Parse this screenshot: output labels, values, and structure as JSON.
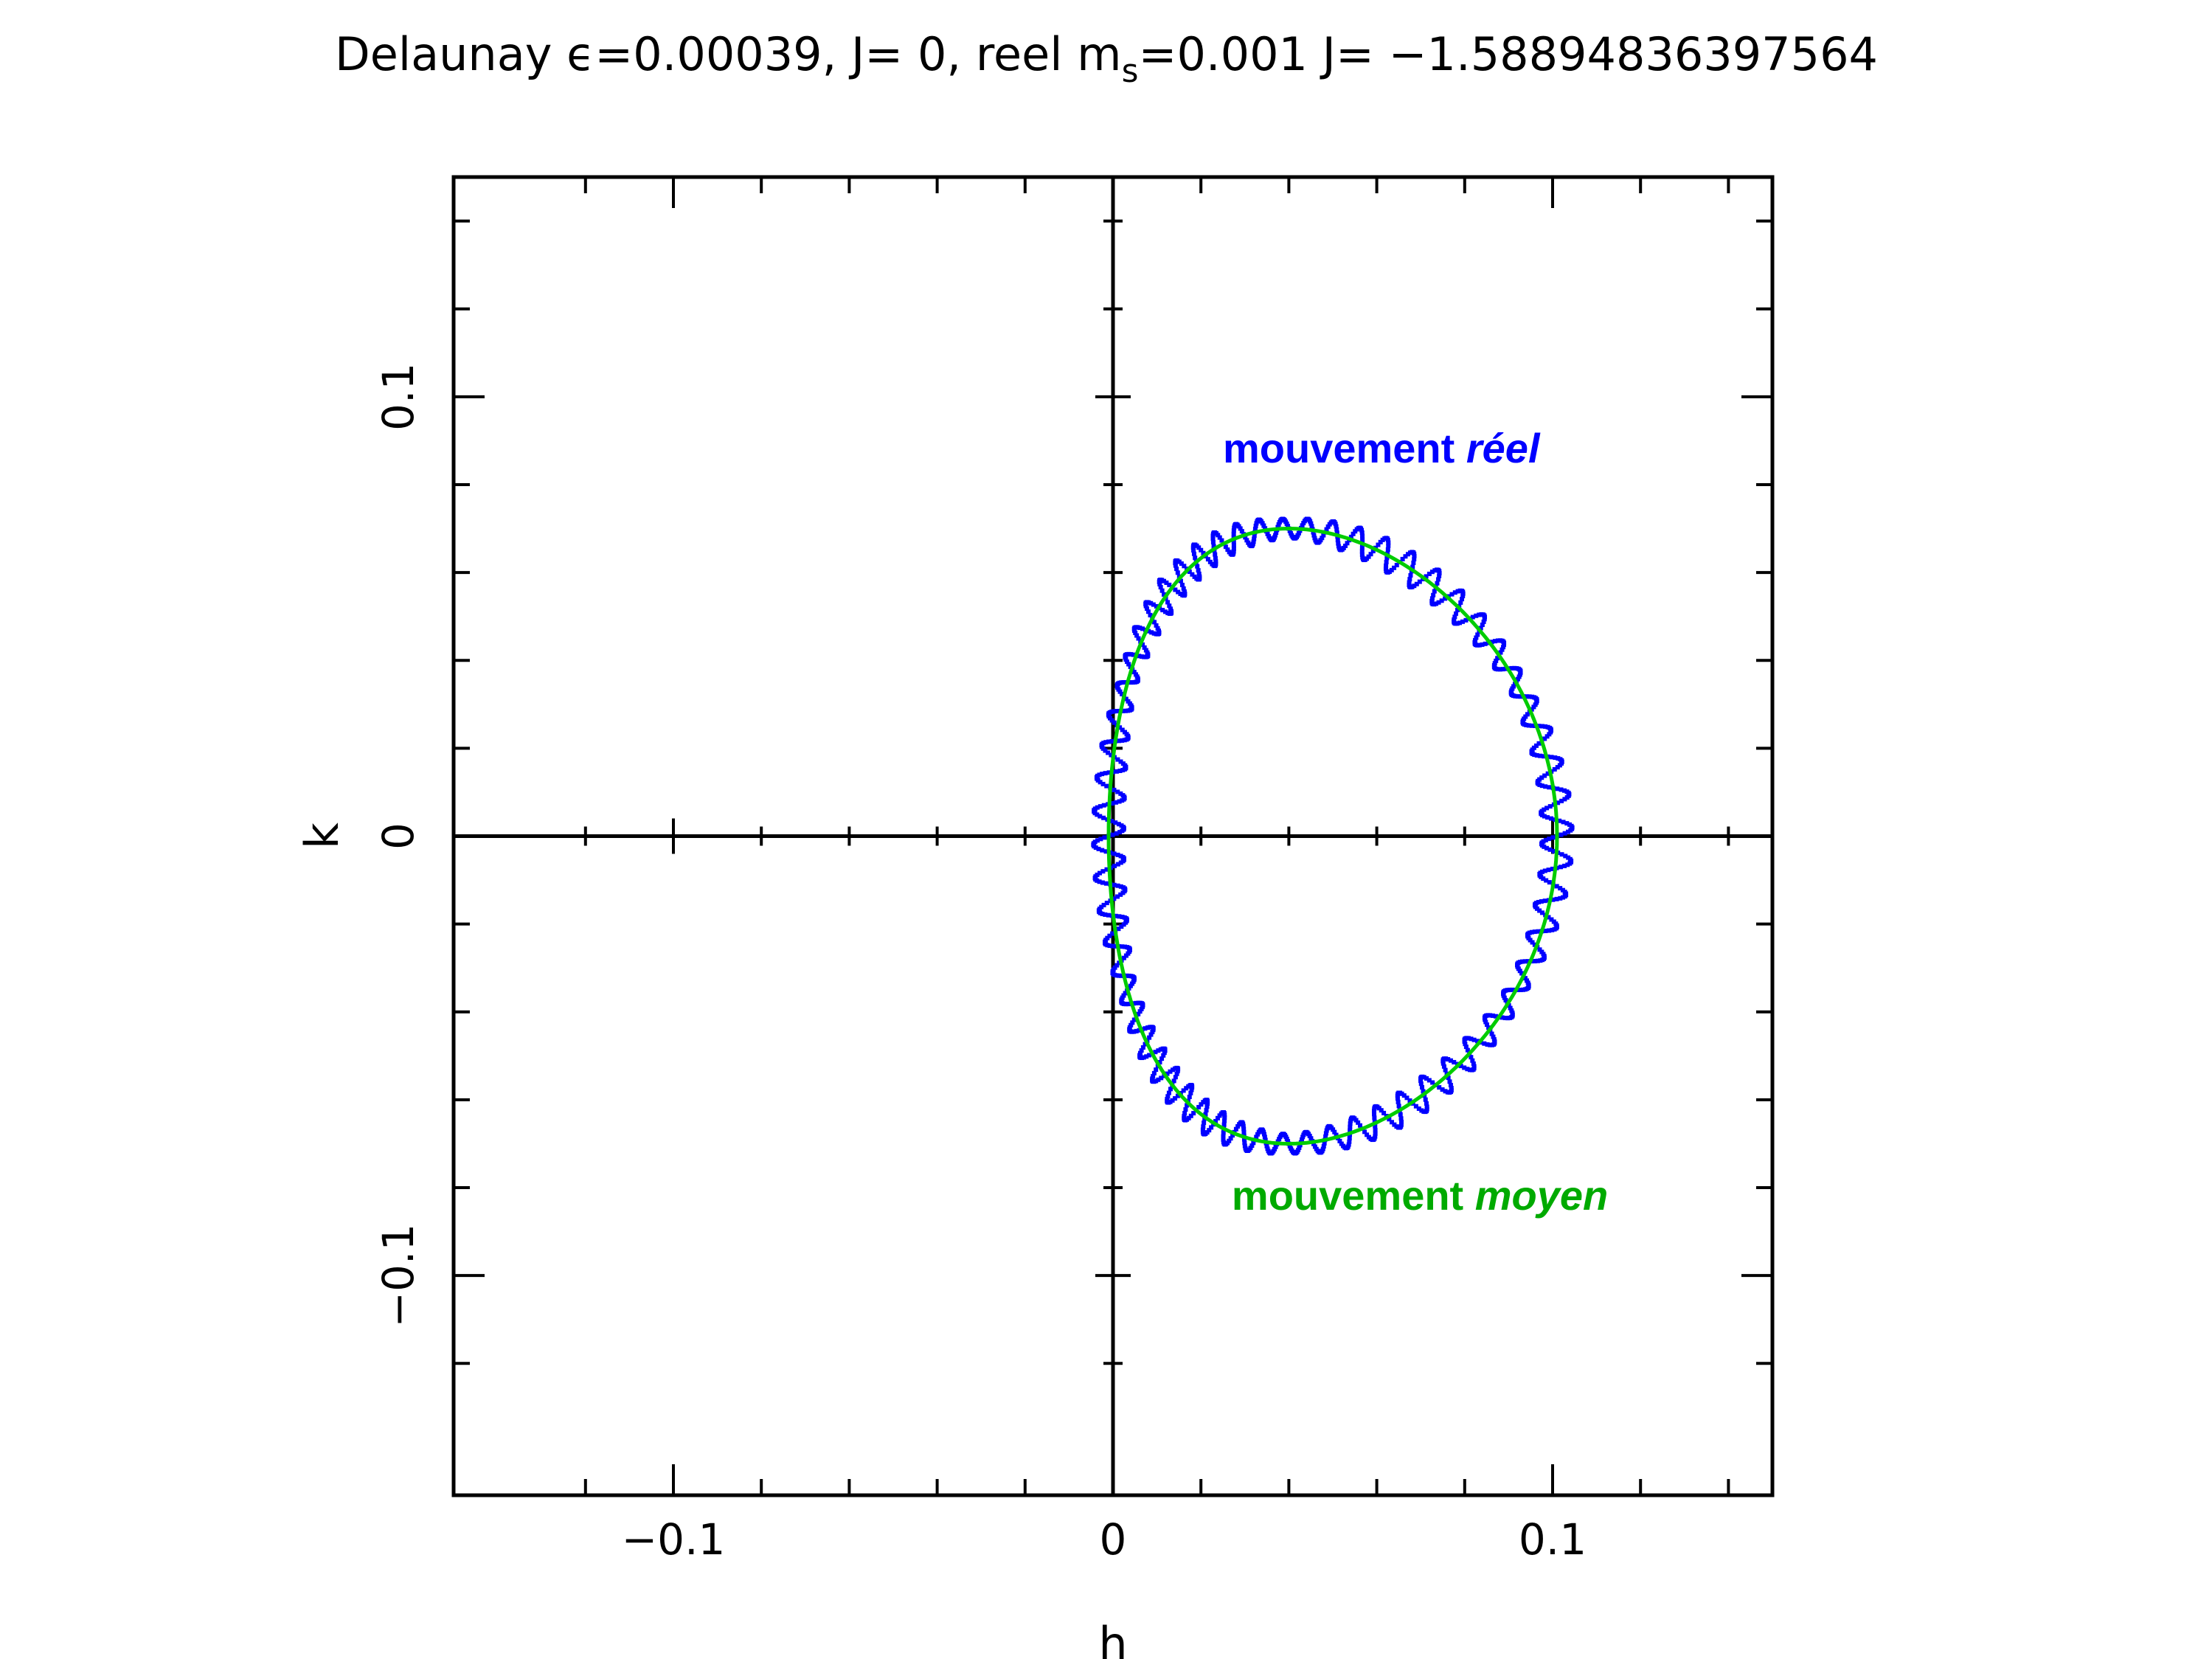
{
  "chart_data": {
    "type": "scatter",
    "title": {
      "prefix": "Delaunay ",
      "eps_symbol": "ϵ",
      "eps_value": "=0.00039, J= 0, reel m",
      "subscript": "s",
      "suffix": "=0.001 J= −1.58894836397564"
    },
    "xlabel": "h",
    "ylabel": "k",
    "xlim": [
      -0.15,
      0.15
    ],
    "ylim": [
      -0.15,
      0.15
    ],
    "x_ticks": [
      {
        "value": -0.1,
        "label": "−0.1"
      },
      {
        "value": 0,
        "label": "0"
      },
      {
        "value": 0.1,
        "label": "0.1"
      }
    ],
    "y_ticks": [
      {
        "value": -0.1,
        "label": "−0.1"
      },
      {
        "value": 0,
        "label": "0"
      },
      {
        "value": 0.1,
        "label": "0.1"
      }
    ],
    "minor_tick_step": 0.02,
    "origin_axes": true,
    "grid": false,
    "series": [
      {
        "label": "mouvement moyen",
        "color": "#00cc00",
        "style": "solid-line",
        "center": [
          0.05,
          0
        ],
        "semi_axis_h": 0.051,
        "semi_axis_k": 0.07,
        "k_peak_h": 0.04
      },
      {
        "label": "mouvement réel",
        "color": "#0000ff",
        "style": "dotted-points",
        "center": [
          0.05,
          0
        ],
        "semi_axis_h": 0.051,
        "semi_axis_k": 0.07,
        "k_peak_h": 0.04,
        "oscillation_amplitude": 0.0035,
        "point_count": 1400
      }
    ],
    "annotations": [
      {
        "text_normal": "mouvement ",
        "text_italic": "réel",
        "color": "#0000ff",
        "h": 0.025,
        "k": 0.085
      },
      {
        "text_normal": "mouvement ",
        "text_italic": "moyen",
        "color": "#00aa00",
        "h": 0.027,
        "k": -0.085
      }
    ]
  }
}
